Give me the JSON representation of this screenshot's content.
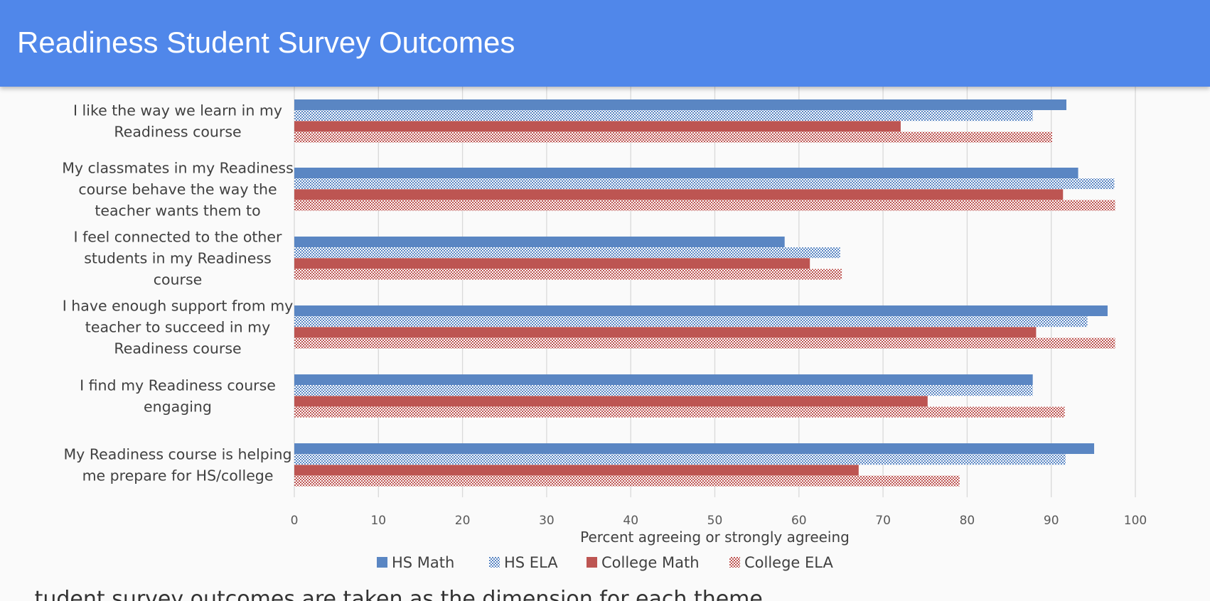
{
  "header": {
    "title": "Readiness Student Survey Outcomes"
  },
  "colors": {
    "header_bg": "#5087ea",
    "hs": "#5a86c3",
    "college": "#bd5552",
    "grid": "#d9d9d9"
  },
  "chart_data": {
    "type": "bar",
    "orientation": "horizontal",
    "categories": [
      [
        "I like the way we learn in my",
        "Readiness course"
      ],
      [
        "My classmates in my Readiness",
        "course behave the way the",
        "teacher wants them to"
      ],
      [
        "I feel connected to the other",
        "students in my Readiness",
        "course"
      ],
      [
        "I have enough support from my",
        "teacher to succeed in my",
        "Readiness course"
      ],
      [
        "I find my Readiness course",
        "engaging"
      ],
      [
        "My Readiness course is helping",
        "me prepare for HS/college"
      ]
    ],
    "series": [
      {
        "name": "HS Math",
        "pattern": "solid",
        "color": "#5a86c3",
        "values": [
          91.8,
          93.2,
          58.3,
          96.7,
          87.8,
          95.1
        ]
      },
      {
        "name": "HS ELA",
        "pattern": "check",
        "color": "#5a86c3",
        "values": [
          87.8,
          97.5,
          64.9,
          94.3,
          87.8,
          91.7
        ]
      },
      {
        "name": "College Math",
        "pattern": "solid",
        "color": "#bd5552",
        "values": [
          72.1,
          91.4,
          61.3,
          88.2,
          75.3,
          67.1
        ]
      },
      {
        "name": "College ELA",
        "pattern": "check",
        "color": "#bd5552",
        "values": [
          90.1,
          97.6,
          65.1,
          97.6,
          91.6,
          79.1
        ]
      }
    ],
    "xlim": [
      0,
      100
    ],
    "xticks": [
      0,
      10,
      20,
      30,
      40,
      50,
      60,
      70,
      80,
      90,
      100
    ],
    "xlabel": "Percent agreeing or strongly agreeing",
    "legend": "bottom",
    "grid": true
  },
  "footer": {
    "text": "...tudent survey outcomes are taken as the dimension for each theme"
  }
}
